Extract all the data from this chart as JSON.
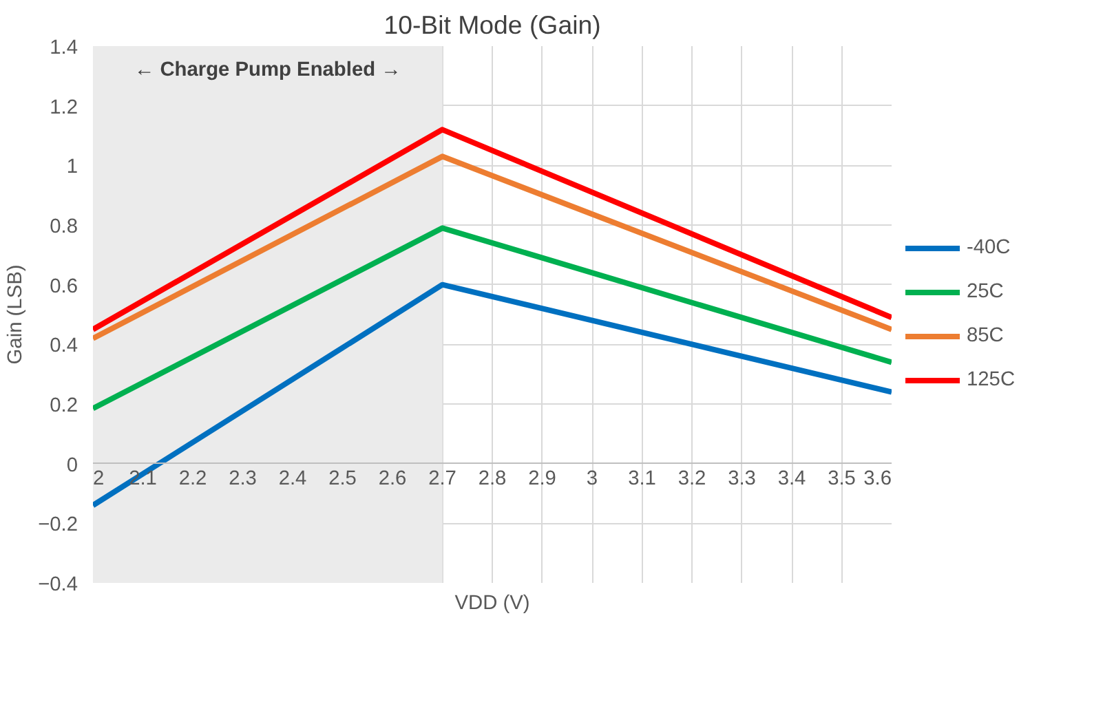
{
  "chart_data": {
    "type": "line",
    "title": "10-Bit Mode (Gain)",
    "xlabel": "VDD (V)",
    "ylabel": "Gain (LSB)",
    "x": [
      2,
      2.7,
      3.6
    ],
    "series": [
      {
        "name": "-40C",
        "color": "#0070c0",
        "values": [
          -0.14,
          0.6,
          0.24
        ]
      },
      {
        "name": "25C",
        "color": "#00b050",
        "values": [
          0.185,
          0.79,
          0.34
        ]
      },
      {
        "name": "85C",
        "color": "#ed7d31",
        "values": [
          0.42,
          1.03,
          0.45
        ]
      },
      {
        "name": "125C",
        "color": "#ff0000",
        "values": [
          0.45,
          1.12,
          0.49
        ]
      }
    ],
    "xlim": [
      2,
      3.6
    ],
    "xticks": [
      2,
      2.1,
      2.2,
      2.3,
      2.4,
      2.5,
      2.6,
      2.7,
      2.8,
      2.9,
      3,
      3.1,
      3.2,
      3.3,
      3.4,
      3.5,
      3.6
    ],
    "ylim": [
      -0.4,
      1.4
    ],
    "yticks": [
      -0.4,
      -0.2,
      0,
      0.2,
      0.4,
      0.6,
      0.8,
      1,
      1.2,
      1.4
    ],
    "bands": [
      {
        "axis": "x",
        "from": 2,
        "to": 2.7,
        "label": "← Charge Pump Enabled →",
        "color": "#ebebeb"
      }
    ],
    "grid": true,
    "legend": "right",
    "marker": "none",
    "line_style": "solid"
  }
}
